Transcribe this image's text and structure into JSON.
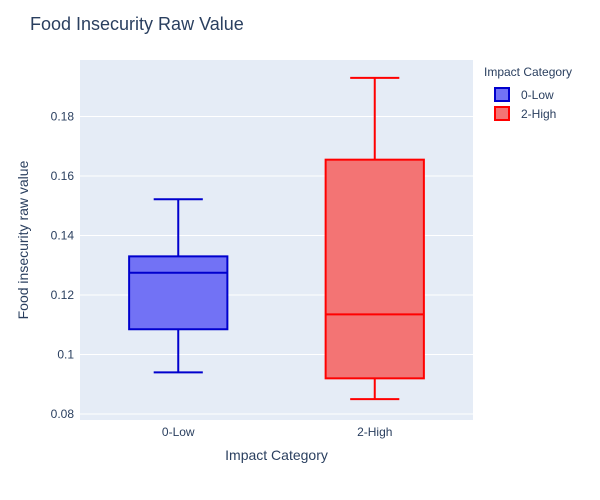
{
  "chart_data": {
    "type": "box",
    "title": "Food Insecurity Raw Value",
    "xlabel": "Impact Category",
    "ylabel": "Food insecurity raw value",
    "categories": [
      "0-Low",
      "2-High"
    ],
    "ylim": [
      0.078,
      0.199
    ],
    "yticks": [
      0.08,
      0.1,
      0.12,
      0.14,
      0.16,
      0.18
    ],
    "ytick_labels": [
      "0.08",
      "0.1",
      "0.12",
      "0.14",
      "0.16",
      "0.18"
    ],
    "grid": true,
    "legend_title": "Impact Category",
    "legend_position": "top-right",
    "series": [
      {
        "name": "0-Low",
        "color": "#0000cd",
        "fill": "#7272f5",
        "min": 0.094,
        "q1": 0.1085,
        "median": 0.1275,
        "q3": 0.133,
        "max": 0.1522
      },
      {
        "name": "2-High",
        "color": "#ff0000",
        "fill": "#f37474",
        "min": 0.085,
        "q1": 0.092,
        "median": 0.1135,
        "q3": 0.1655,
        "max": 0.193
      }
    ]
  }
}
